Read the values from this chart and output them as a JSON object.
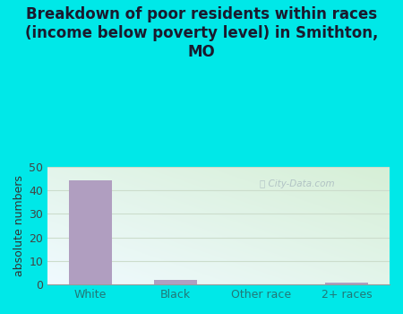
{
  "title": "Breakdown of poor residents within races\n(income below poverty level) in Smithton,\nMO",
  "categories": [
    "White",
    "Black",
    "Other race",
    "2+ races"
  ],
  "values": [
    44,
    2,
    0,
    1
  ],
  "bar_color": "#b09ec0",
  "ylabel": "absolute numbers",
  "ylim": [
    0,
    50
  ],
  "yticks": [
    0,
    10,
    20,
    30,
    40,
    50
  ],
  "bg_color_outer": "#00e8e8",
  "bg_color_plot_topleft": "#d6efd6",
  "bg_color_plot_bottomright": "#f0f8ff",
  "title_fontsize": 12,
  "title_color": "#1a1a2e",
  "axis_label_fontsize": 9,
  "tick_fontsize": 9,
  "watermark": "City-Data.com",
  "watermark_color": "#aabbc0",
  "grid_color": "#ccddcc"
}
